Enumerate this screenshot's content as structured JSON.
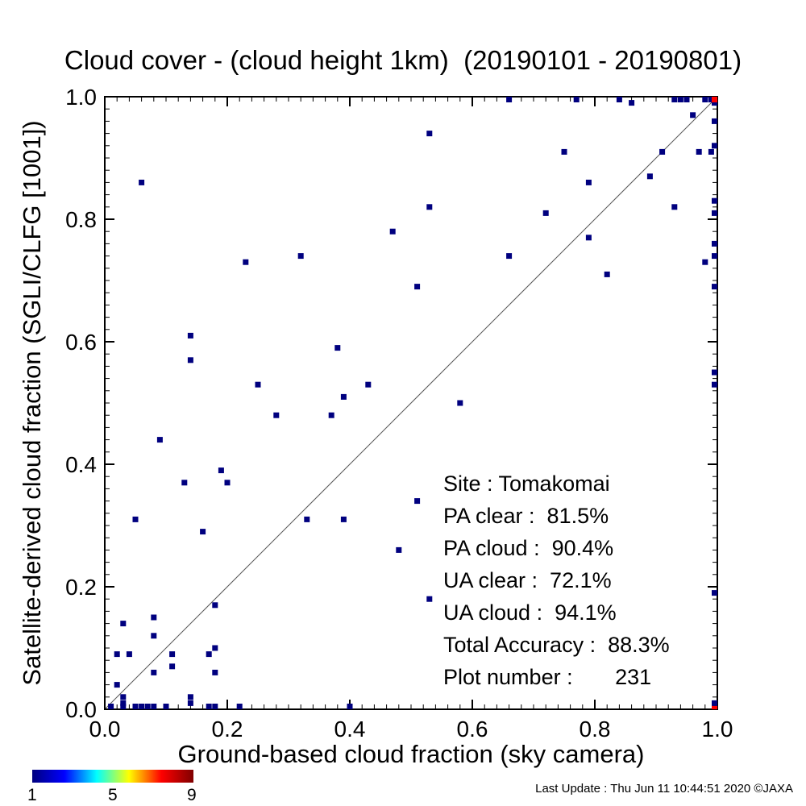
{
  "title": "Cloud cover - (cloud height 1km)  (20190101 - 20190801)",
  "footer": "Last Update : Thu Jun 11 10:44:51 2020  ©JAXA",
  "stats": {
    "site": "Site : Tomakomai",
    "pa_clear": "PA clear :  81.5%",
    "pa_cloud": "PA cloud :  90.4%",
    "ua_clear": "UA clear :  72.1%",
    "ua_cloud": "UA cloud :  94.1%",
    "total": "Total Accuracy :  88.3%",
    "plot_number": "Plot number :       231"
  },
  "colorbar": {
    "ticks": [
      "1",
      "5",
      "9"
    ],
    "min": 1,
    "max": 9
  },
  "chart_data": {
    "type": "scatter",
    "title": "Cloud cover - (cloud height 1km)  (20190101 - 20190801)",
    "xlabel": "Ground-based cloud fraction (sky camera)",
    "ylabel": "Satellite-derived cloud fraction (SGLI/CLFG [1001])",
    "xlim": [
      0,
      1
    ],
    "ylim": [
      0,
      1
    ],
    "xticks": [
      "0.0",
      "0.2",
      "0.4",
      "0.6",
      "0.8",
      "1.0"
    ],
    "yticks": [
      "0.0",
      "0.2",
      "0.4",
      "0.6",
      "0.8",
      "1.0"
    ],
    "diagonal": true,
    "colors": {
      "low": "#00007f",
      "high": "#ff0000"
    },
    "points": [
      [
        0.01,
        0.0,
        1
      ],
      [
        0.03,
        0.0,
        1
      ],
      [
        0.05,
        0.0,
        1
      ],
      [
        0.06,
        0.0,
        1
      ],
      [
        0.07,
        0.0,
        1
      ],
      [
        0.08,
        0.0,
        1
      ],
      [
        0.1,
        0.0,
        1
      ],
      [
        0.17,
        0.0,
        1
      ],
      [
        0.18,
        0.0,
        1
      ],
      [
        0.22,
        0.0,
        1
      ],
      [
        0.4,
        0.0,
        1
      ],
      [
        1.0,
        0.0,
        9
      ],
      [
        0.03,
        0.01,
        1
      ],
      [
        0.14,
        0.01,
        1
      ],
      [
        1.0,
        0.01,
        1
      ],
      [
        0.03,
        0.02,
        1
      ],
      [
        0.14,
        0.02,
        1
      ],
      [
        0.02,
        0.04,
        1
      ],
      [
        0.08,
        0.06,
        1
      ],
      [
        0.18,
        0.06,
        1
      ],
      [
        0.11,
        0.07,
        1
      ],
      [
        0.02,
        0.09,
        1
      ],
      [
        0.04,
        0.09,
        1
      ],
      [
        0.11,
        0.09,
        1
      ],
      [
        0.17,
        0.09,
        1
      ],
      [
        0.18,
        0.1,
        1
      ],
      [
        0.08,
        0.12,
        1
      ],
      [
        0.03,
        0.14,
        1
      ],
      [
        0.08,
        0.15,
        1
      ],
      [
        0.18,
        0.17,
        1
      ],
      [
        0.53,
        0.18,
        1
      ],
      [
        1.0,
        0.19,
        1
      ],
      [
        0.48,
        0.26,
        1
      ],
      [
        0.16,
        0.29,
        1
      ],
      [
        0.05,
        0.31,
        1
      ],
      [
        0.33,
        0.31,
        1
      ],
      [
        0.39,
        0.31,
        1
      ],
      [
        0.51,
        0.34,
        1
      ],
      [
        0.13,
        0.37,
        1
      ],
      [
        0.2,
        0.37,
        1
      ],
      [
        0.19,
        0.39,
        1
      ],
      [
        0.09,
        0.44,
        1
      ],
      [
        0.28,
        0.48,
        1
      ],
      [
        0.37,
        0.48,
        1
      ],
      [
        0.58,
        0.5,
        1
      ],
      [
        0.39,
        0.51,
        1
      ],
      [
        0.25,
        0.53,
        1
      ],
      [
        0.43,
        0.53,
        1
      ],
      [
        1.0,
        0.53,
        1
      ],
      [
        1.0,
        0.55,
        1
      ],
      [
        0.14,
        0.57,
        1
      ],
      [
        0.38,
        0.59,
        1
      ],
      [
        0.14,
        0.61,
        1
      ],
      [
        0.51,
        0.69,
        1
      ],
      [
        1.0,
        0.69,
        1
      ],
      [
        0.82,
        0.71,
        1
      ],
      [
        0.23,
        0.73,
        1
      ],
      [
        0.98,
        0.73,
        1
      ],
      [
        0.32,
        0.74,
        1
      ],
      [
        0.66,
        0.74,
        1
      ],
      [
        1.0,
        0.74,
        1
      ],
      [
        1.0,
        0.76,
        1
      ],
      [
        0.79,
        0.77,
        1
      ],
      [
        0.47,
        0.78,
        1
      ],
      [
        0.72,
        0.81,
        1
      ],
      [
        1.0,
        0.81,
        1
      ],
      [
        0.53,
        0.82,
        1
      ],
      [
        0.93,
        0.82,
        1
      ],
      [
        1.0,
        0.83,
        1
      ],
      [
        0.06,
        0.86,
        1
      ],
      [
        0.79,
        0.86,
        1
      ],
      [
        0.89,
        0.87,
        1
      ],
      [
        0.75,
        0.91,
        1
      ],
      [
        0.91,
        0.91,
        1
      ],
      [
        0.97,
        0.91,
        1
      ],
      [
        0.99,
        0.91,
        1
      ],
      [
        1.0,
        0.92,
        1
      ],
      [
        0.53,
        0.94,
        1
      ],
      [
        1.0,
        0.96,
        1
      ],
      [
        0.96,
        0.97,
        1
      ],
      [
        0.86,
        0.99,
        1
      ],
      [
        1.0,
        0.99,
        1
      ],
      [
        0.66,
        1.0,
        1
      ],
      [
        0.77,
        1.0,
        1
      ],
      [
        0.84,
        1.0,
        1
      ],
      [
        0.93,
        1.0,
        1
      ],
      [
        0.94,
        1.0,
        1
      ],
      [
        0.95,
        1.0,
        1
      ],
      [
        0.98,
        1.0,
        1
      ],
      [
        0.99,
        1.0,
        1
      ],
      [
        1.0,
        1.0,
        9
      ]
    ]
  }
}
